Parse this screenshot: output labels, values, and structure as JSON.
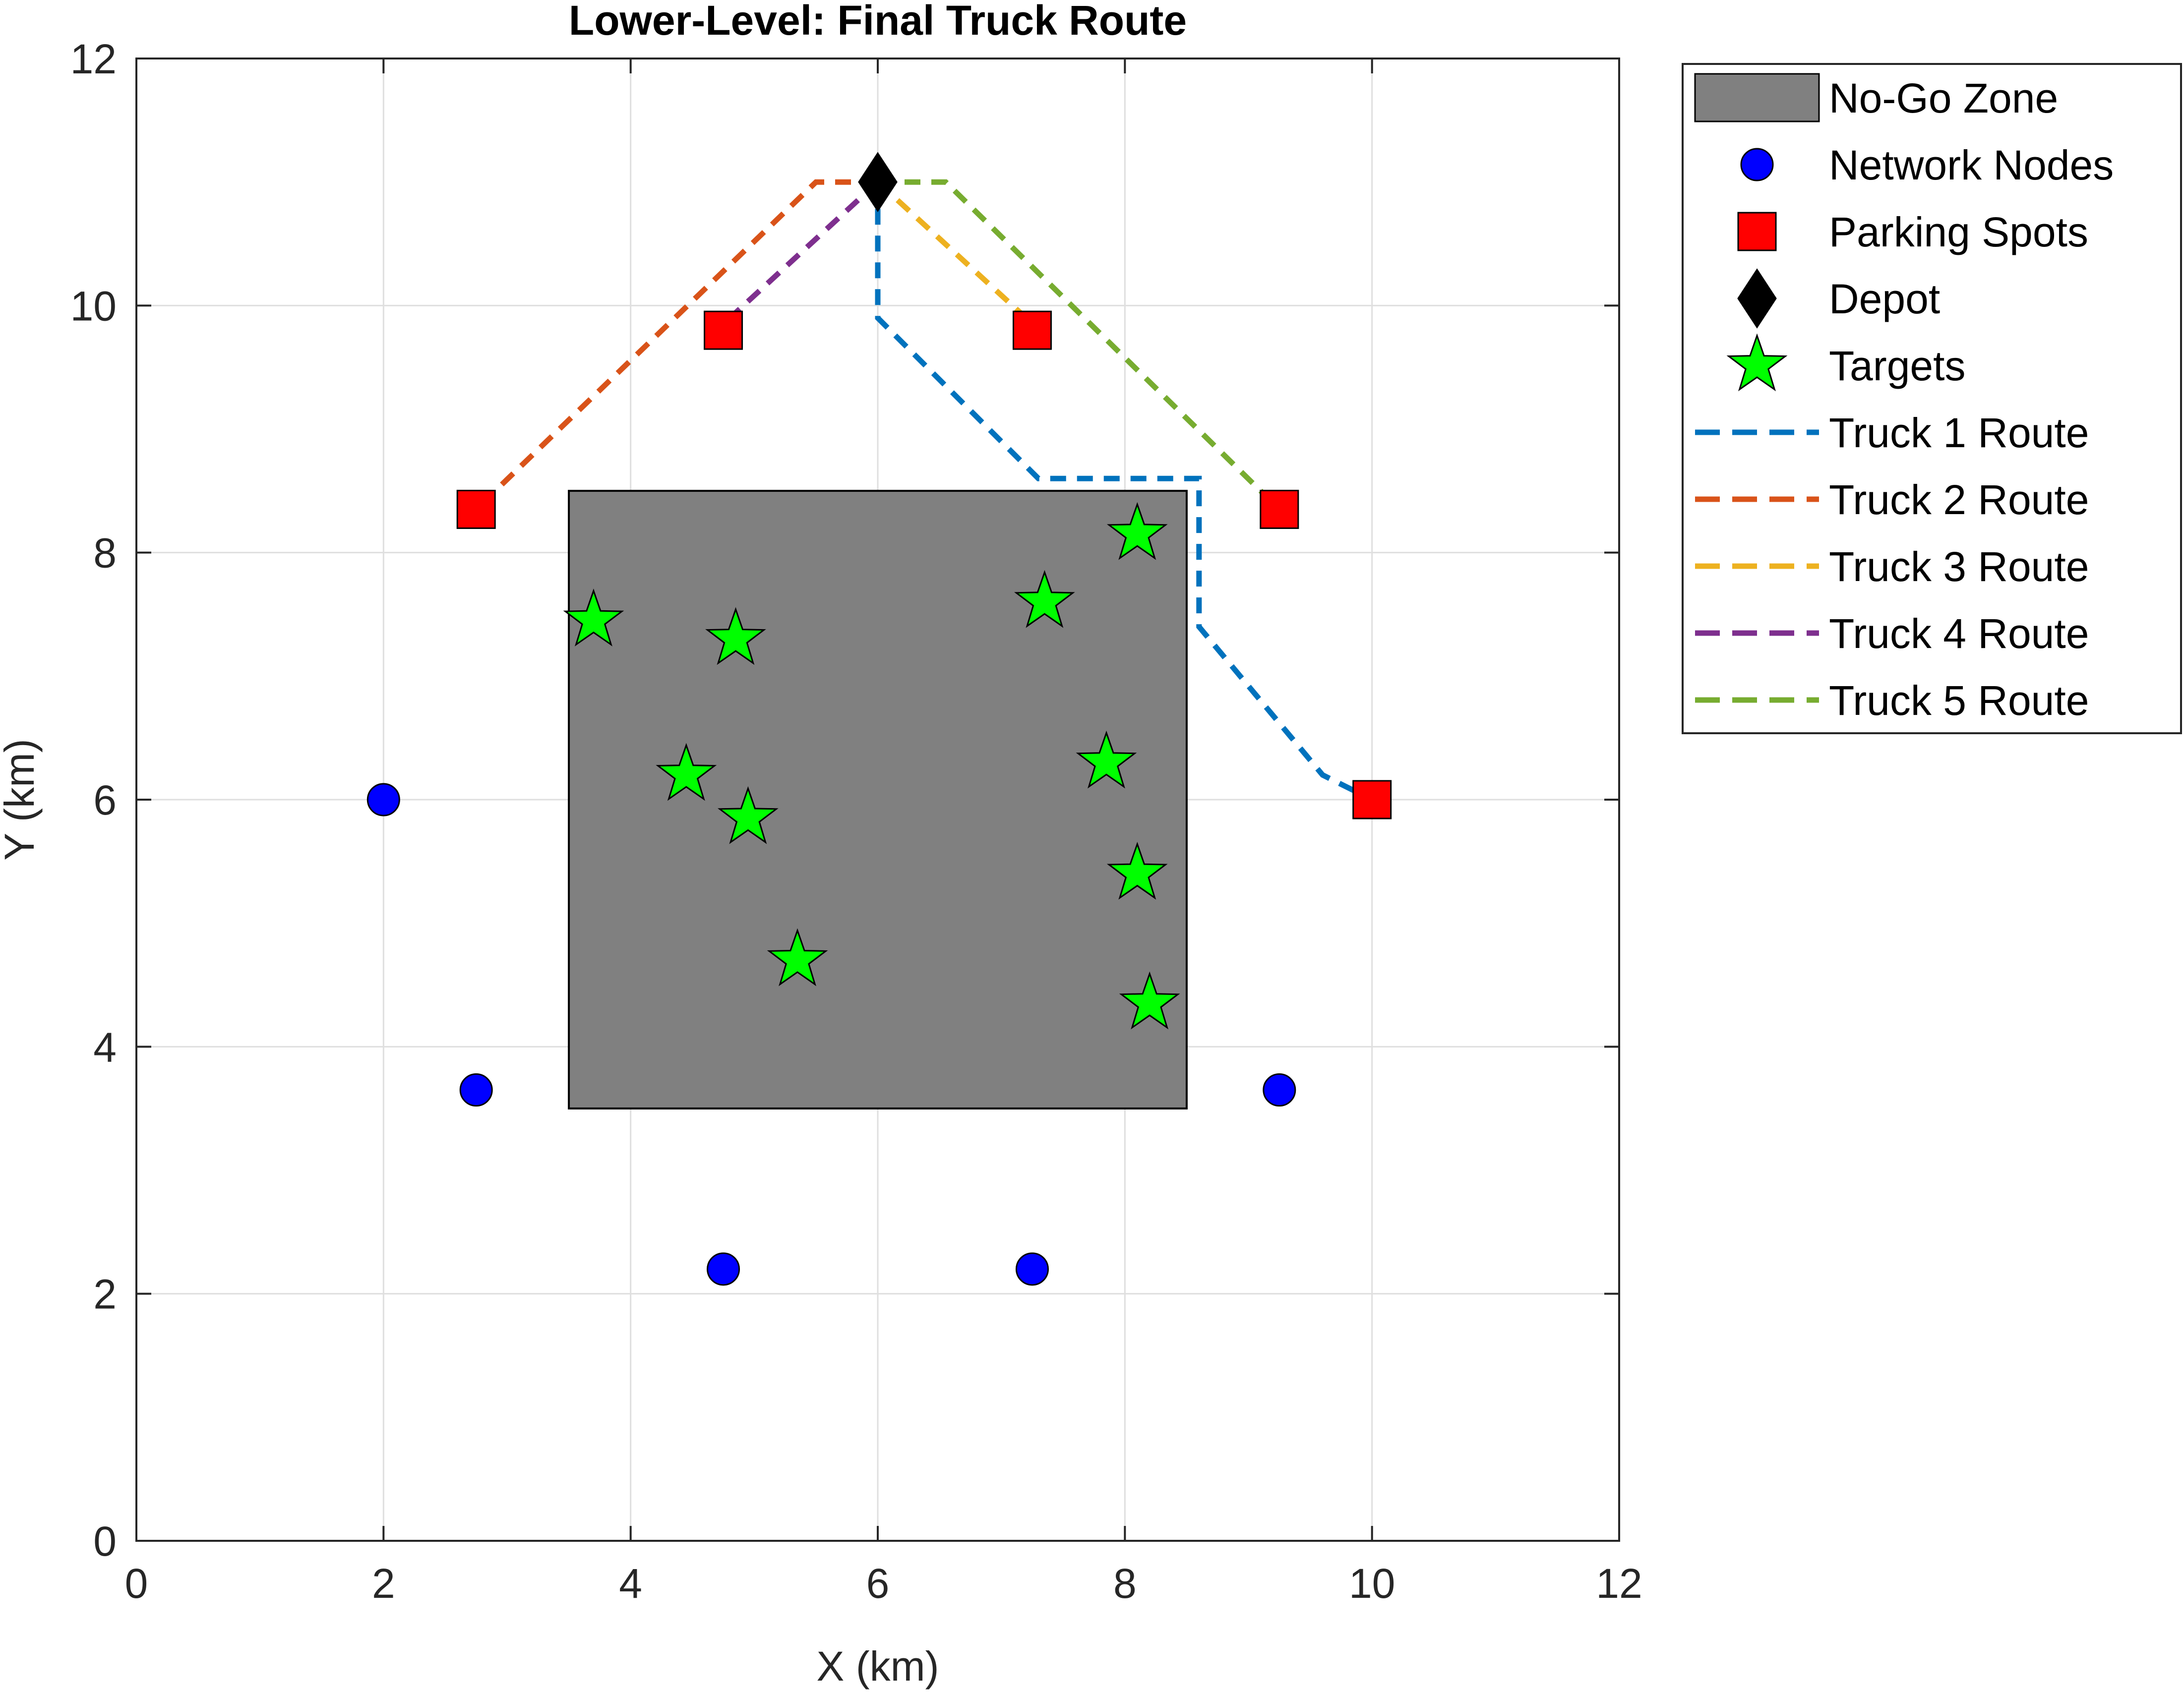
{
  "chart_data": {
    "type": "scatter",
    "title": "Lower-Level: Final Truck Route",
    "xlabel": "X (km)",
    "ylabel": "Y (km)",
    "xlim": [
      0,
      12
    ],
    "ylim": [
      0,
      12
    ],
    "xticks": [
      "0",
      "2",
      "4",
      "6",
      "8",
      "10",
      "12"
    ],
    "yticks": [
      "0",
      "2",
      "4",
      "6",
      "8",
      "10",
      "12"
    ],
    "grid": true,
    "legend_position": "outside-top-right",
    "no_go_zone": {
      "x": [
        3.5,
        8.5
      ],
      "y": [
        3.5,
        8.5
      ],
      "color": "#808080"
    },
    "network_nodes": [
      {
        "x": 2.0,
        "y": 6.0
      },
      {
        "x": 2.75,
        "y": 3.65
      },
      {
        "x": 4.75,
        "y": 2.2
      },
      {
        "x": 7.25,
        "y": 2.2
      },
      {
        "x": 9.25,
        "y": 3.65
      }
    ],
    "parking_spots": [
      {
        "x": 2.75,
        "y": 8.35
      },
      {
        "x": 4.75,
        "y": 9.8
      },
      {
        "x": 7.25,
        "y": 9.8
      },
      {
        "x": 9.25,
        "y": 8.35
      },
      {
        "x": 10.0,
        "y": 6.0
      }
    ],
    "depot": {
      "x": 6.0,
      "y": 11.0
    },
    "targets": [
      {
        "x": 3.7,
        "y": 7.45
      },
      {
        "x": 4.85,
        "y": 7.3
      },
      {
        "x": 4.45,
        "y": 6.2
      },
      {
        "x": 4.95,
        "y": 5.85
      },
      {
        "x": 5.35,
        "y": 4.7
      },
      {
        "x": 7.35,
        "y": 7.6
      },
      {
        "x": 8.1,
        "y": 8.15
      },
      {
        "x": 7.85,
        "y": 6.3
      },
      {
        "x": 8.1,
        "y": 5.4
      },
      {
        "x": 8.2,
        "y": 4.35
      }
    ],
    "series": [
      {
        "name": "Truck 1 Route",
        "color": "#0072BD",
        "points": [
          [
            6.0,
            11.0
          ],
          [
            6.0,
            9.9
          ],
          [
            7.3,
            8.6
          ],
          [
            8.6,
            8.6
          ],
          [
            8.6,
            7.4
          ],
          [
            9.6,
            6.2
          ],
          [
            10.0,
            6.0
          ]
        ]
      },
      {
        "name": "Truck 2 Route",
        "color": "#D95319",
        "points": [
          [
            6.0,
            11.0
          ],
          [
            5.5,
            11.0
          ],
          [
            2.8,
            8.4
          ]
        ]
      },
      {
        "name": "Truck 3 Route",
        "color": "#EDB120",
        "points": [
          [
            6.0,
            11.0
          ],
          [
            7.2,
            9.9
          ]
        ]
      },
      {
        "name": "Truck 4 Route",
        "color": "#7E2F8E",
        "points": [
          [
            6.0,
            11.0
          ],
          [
            4.75,
            9.85
          ]
        ]
      },
      {
        "name": "Truck 5 Route",
        "color": "#77AC30",
        "points": [
          [
            6.0,
            11.0
          ],
          [
            6.55,
            11.0
          ],
          [
            9.2,
            8.4
          ]
        ]
      }
    ],
    "legend": [
      {
        "label": "No-Go Zone",
        "kind": "patch",
        "color": "#808080"
      },
      {
        "label": "Network Nodes",
        "kind": "circle",
        "color": "#0000FF"
      },
      {
        "label": "Parking Spots",
        "kind": "square",
        "color": "#FF0000"
      },
      {
        "label": "Depot",
        "kind": "diamond",
        "color": "#000000"
      },
      {
        "label": "Targets",
        "kind": "star",
        "color": "#00FF00"
      },
      {
        "label": "Truck 1 Route",
        "kind": "line",
        "color": "#0072BD"
      },
      {
        "label": "Truck 2 Route",
        "kind": "line",
        "color": "#D95319"
      },
      {
        "label": "Truck 3 Route",
        "kind": "line",
        "color": "#EDB120"
      },
      {
        "label": "Truck 4 Route",
        "kind": "line",
        "color": "#7E2F8E"
      },
      {
        "label": "Truck 5 Route",
        "kind": "line",
        "color": "#77AC30"
      }
    ]
  }
}
